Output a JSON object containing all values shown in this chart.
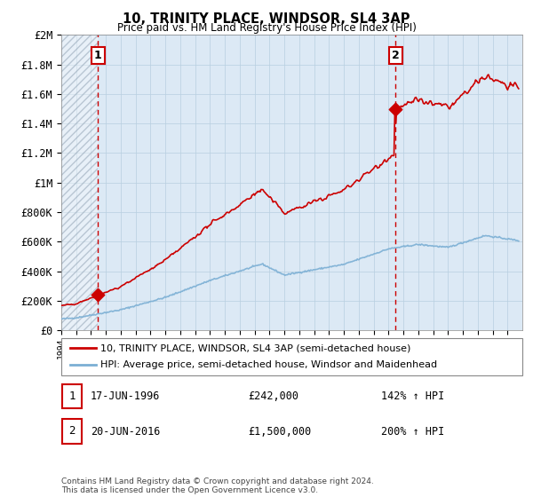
{
  "title": "10, TRINITY PLACE, WINDSOR, SL4 3AP",
  "subtitle": "Price paid vs. HM Land Registry's House Price Index (HPI)",
  "footer": "Contains HM Land Registry data © Crown copyright and database right 2024.\nThis data is licensed under the Open Government Licence v3.0.",
  "legend_line1": "10, TRINITY PLACE, WINDSOR, SL4 3AP (semi-detached house)",
  "legend_line2": "HPI: Average price, semi-detached house, Windsor and Maidenhead",
  "annotation1_label": "1",
  "annotation1_date": "17-JUN-1996",
  "annotation1_price": "£242,000",
  "annotation1_hpi": "142% ↑ HPI",
  "annotation1_year": 1996.46,
  "annotation1_value": 242000,
  "annotation2_label": "2",
  "annotation2_date": "20-JUN-2016",
  "annotation2_price": "£1,500,000",
  "annotation2_hpi": "200% ↑ HPI",
  "annotation2_year": 2016.46,
  "annotation2_value": 1500000,
  "hpi_color": "#7bafd4",
  "price_color": "#cc0000",
  "plot_bg": "#dce9f5",
  "hatch_color": "#b0bfcc",
  "ylim": [
    0,
    2000000
  ],
  "yticks": [
    0,
    200000,
    400000,
    600000,
    800000,
    1000000,
    1200000,
    1400000,
    1600000,
    1800000,
    2000000
  ],
  "ytick_labels": [
    "£0",
    "£200K",
    "£400K",
    "£600K",
    "£800K",
    "£1M",
    "£1.2M",
    "£1.4M",
    "£1.6M",
    "£1.8M",
    "£2M"
  ],
  "xmin": 1994,
  "xmax": 2025
}
